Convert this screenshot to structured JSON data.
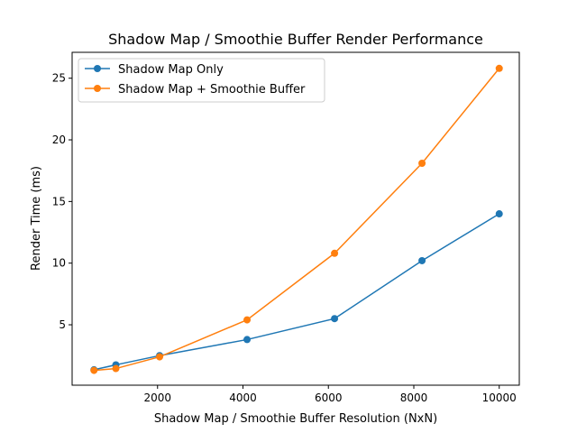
{
  "chart_data": {
    "type": "line",
    "title": "Shadow Map / Smoothie Buffer Render Performance",
    "xlabel": "Shadow Map / Smoothie Buffer Resolution (NxN)",
    "ylabel": "Render Time (ms)",
    "xlim": [
      0,
      10470
    ],
    "ylim": [
      0.1,
      27.1
    ],
    "xticks": [
      2000,
      4000,
      6000,
      8000,
      10000
    ],
    "yticks": [
      5,
      10,
      15,
      20,
      25
    ],
    "legend_position": "top-left",
    "grid": false,
    "x": [
      512,
      1024,
      2048,
      4096,
      6144,
      8192,
      10000
    ],
    "series": [
      {
        "name": "Shadow Map Only",
        "color": "#1f77b4",
        "values": [
          1.35,
          1.75,
          2.5,
          3.8,
          5.5,
          10.2,
          14.0
        ]
      },
      {
        "name": "Shadow Map + Smoothie Buffer",
        "color": "#ff7f0e",
        "values": [
          1.3,
          1.45,
          2.4,
          5.4,
          10.8,
          18.1,
          25.8
        ]
      }
    ]
  }
}
